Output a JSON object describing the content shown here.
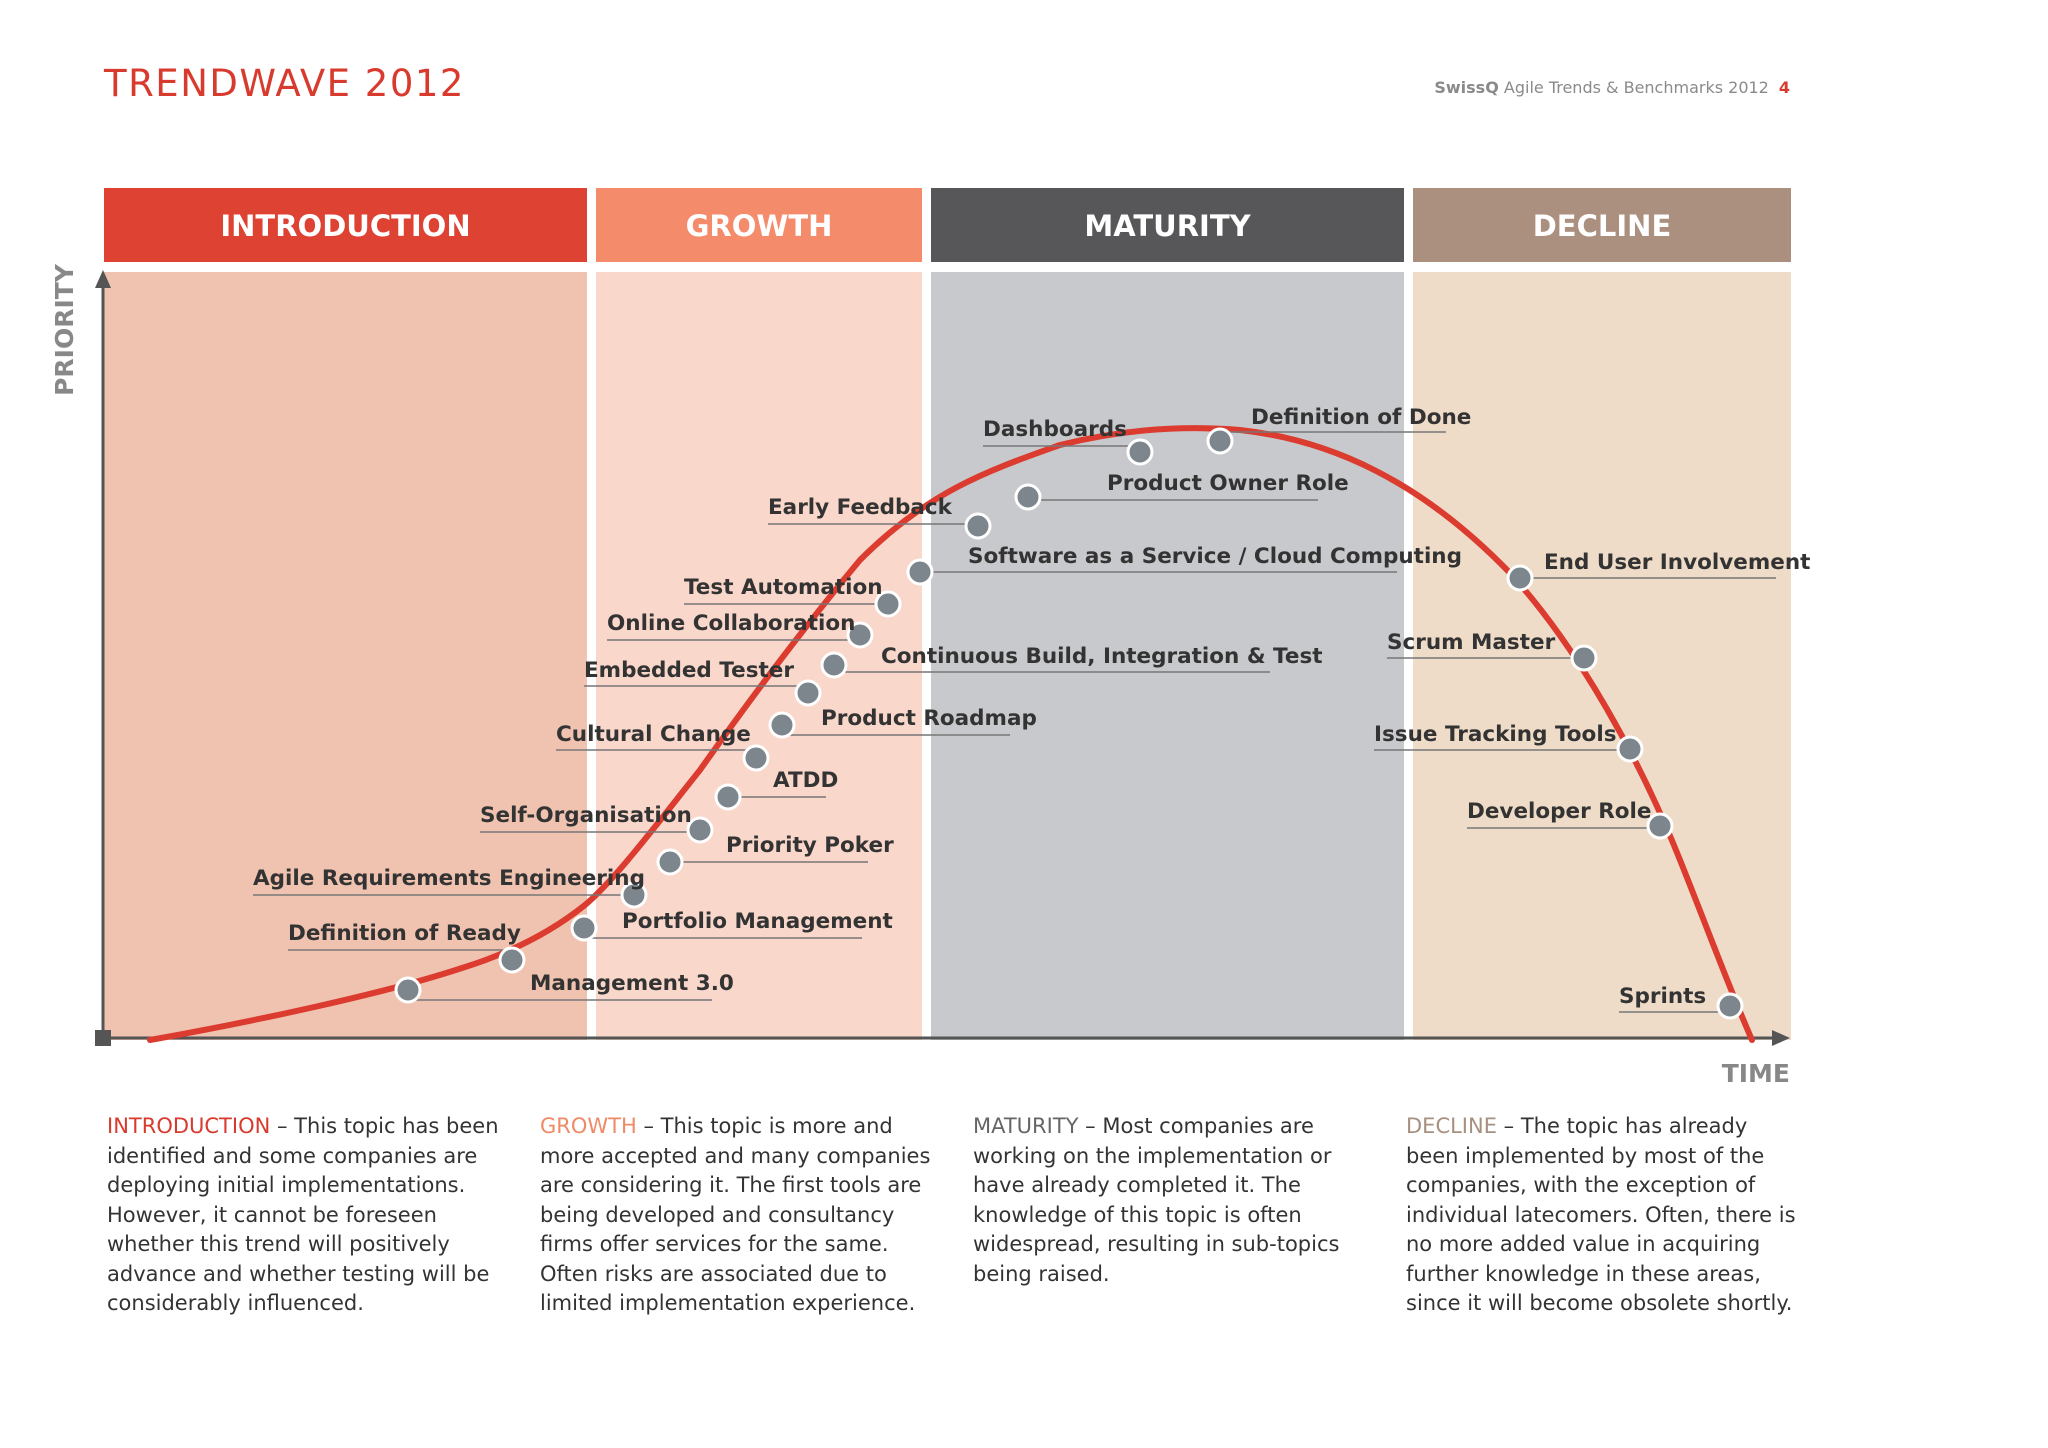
{
  "header": {
    "title": "TRENDWAVE 2012",
    "brand": "SwissQ",
    "publication": "Agile Trends & Benchmarks 2012",
    "page_number": "4"
  },
  "axes": {
    "y_label": "PRIORITY",
    "x_label": "TIME"
  },
  "colors": {
    "introduction": "#dd4233",
    "growth": "#f48b6b",
    "maturity": "#57575a",
    "decline": "#ac907f",
    "curve": "#db3c2f",
    "marker": "#7e868d"
  },
  "phases": [
    {
      "label": "INTRODUCTION",
      "description": " – This topic has been identified and some companies are deploying initial implementations. However, it cannot be foreseen whether this trend will positively advance and whether testing will be considerably influenced."
    },
    {
      "label": "GROWTH",
      "description": " – This topic is more and more accepted and many companies are considering it. The first tools are being developed and consultancy firms offer services for the same. Often risks are associated due to limited implementation experience."
    },
    {
      "label": "MATURITY",
      "description": " – Most companies are working on the implementation or have already completed it. The knowledge of this topic is often widespread, resulting in sub-topics being raised."
    },
    {
      "label": "DECLINE",
      "description": " – The topic has already been implemented by most of the companies, with the exception of individual latecomers. Often, there is no more added value in acquiring further knowledge in these areas, since it will become obsolete shortly."
    }
  ],
  "topics": [
    {
      "label": "Management 3.0"
    },
    {
      "label": "Definition of Ready"
    },
    {
      "label": "Portfolio Management"
    },
    {
      "label": "Agile Requirements Engineering"
    },
    {
      "label": "Priority Poker"
    },
    {
      "label": "Self-Organisation"
    },
    {
      "label": "ATDD"
    },
    {
      "label": "Cultural Change"
    },
    {
      "label": "Product Roadmap"
    },
    {
      "label": "Embedded Tester"
    },
    {
      "label": "Continuous Build, Integration & Test"
    },
    {
      "label": "Online Collaboration"
    },
    {
      "label": "Test Automation"
    },
    {
      "label": "Software as a Service / Cloud Computing"
    },
    {
      "label": "Early Feedback"
    },
    {
      "label": "Product Owner Role"
    },
    {
      "label": "Dashboards"
    },
    {
      "label": "Definition of Done"
    },
    {
      "label": "End User Involvement"
    },
    {
      "label": "Scrum Master"
    },
    {
      "label": "Issue Tracking Tools"
    },
    {
      "label": "Developer Role"
    },
    {
      "label": "Sprints"
    }
  ]
}
